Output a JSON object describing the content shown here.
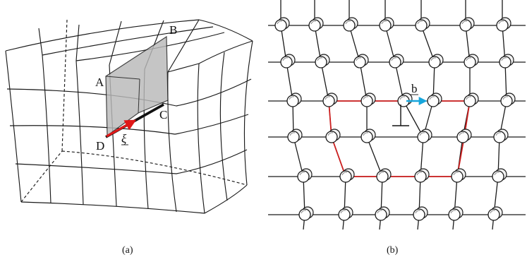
{
  "panel_a": {
    "points": {
      "A": "A",
      "B": "B",
      "C": "C",
      "D": "D"
    },
    "xi": "ξ",
    "caption": "(a)",
    "colors": {
      "burgers_arrow": "#e01818",
      "shaded_plane": "#b9b9b9"
    }
  },
  "panel_b": {
    "burgers_label": "b",
    "caption": "(b)",
    "colors": {
      "circuit": "#cc1f1f",
      "burgers_vector": "#17a6dc"
    }
  }
}
